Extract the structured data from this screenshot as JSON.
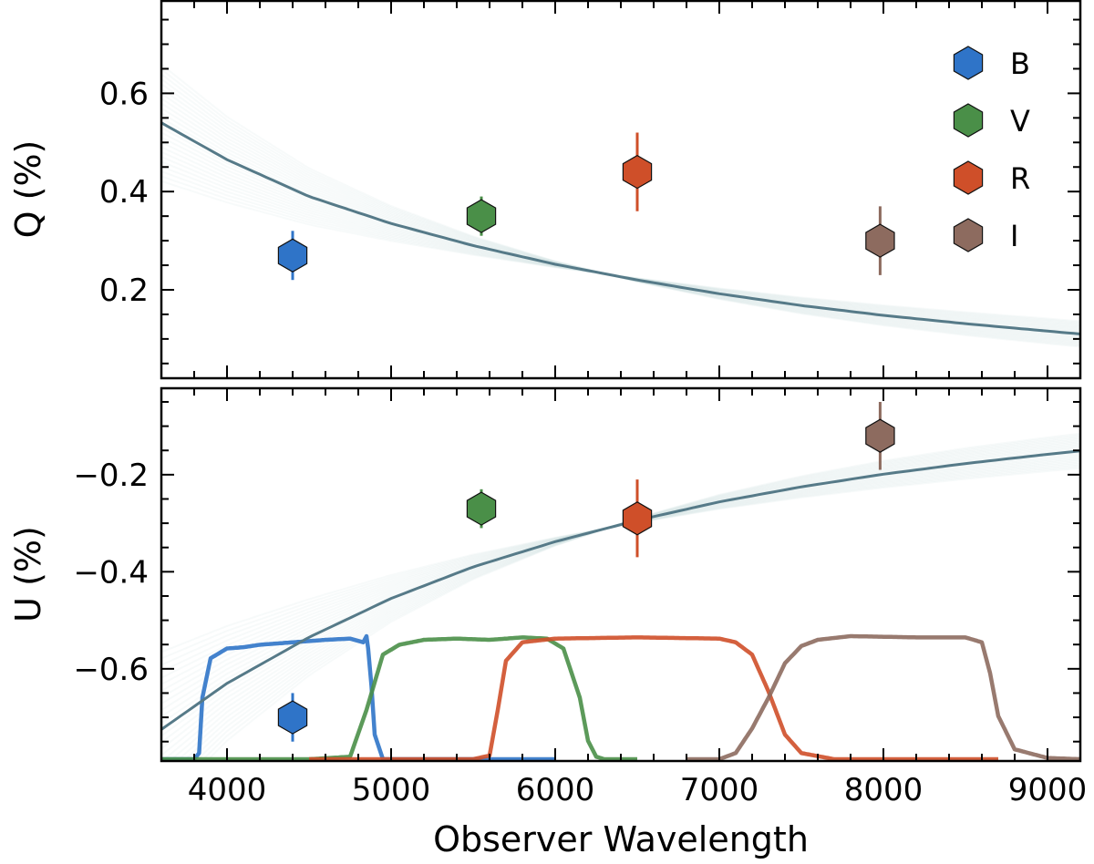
{
  "chart_data": {
    "type": "scatter",
    "xlabel": "Observer Wavelength",
    "xlim": [
      3600,
      9200
    ],
    "x_ticks": [
      4000,
      5000,
      6000,
      7000,
      8000,
      9000
    ],
    "x_tick_labels": [
      "4000",
      "5000",
      "6000",
      "7000",
      "8000",
      "9000"
    ],
    "legend": {
      "position": "top-right",
      "entries": [
        "B",
        "V",
        "R",
        "I"
      ]
    },
    "colors": {
      "B": "#2f74c8",
      "V": "#4a8f48",
      "R": "#cf4f29",
      "I": "#8d6b5f",
      "model": "#567a88",
      "model_samples": "#bcd3d8"
    },
    "panels": [
      {
        "name": "Q",
        "ylabel": "Q (%)",
        "ylim": [
          0.02,
          0.79
        ],
        "y_ticks": [
          0.2,
          0.4,
          0.6
        ],
        "y_tick_labels": [
          "0.2",
          "0.4",
          "0.6"
        ],
        "series": [
          {
            "name": "B",
            "x": 4400,
            "y": 0.27,
            "yerr": 0.05
          },
          {
            "name": "V",
            "x": 5550,
            "y": 0.35,
            "yerr": 0.04
          },
          {
            "name": "R",
            "x": 6500,
            "y": 0.44,
            "yerr": 0.08
          },
          {
            "name": "I",
            "x": 7980,
            "y": 0.3,
            "yerr": 0.07
          }
        ],
        "model_curve": {
          "x": [
            3600,
            4000,
            4500,
            5000,
            5500,
            6000,
            6500,
            7000,
            7500,
            8000,
            8500,
            9000,
            9200
          ],
          "y": [
            0.54,
            0.465,
            0.39,
            0.335,
            0.29,
            0.252,
            0.22,
            0.192,
            0.168,
            0.148,
            0.131,
            0.116,
            0.11
          ]
        }
      },
      {
        "name": "U",
        "ylabel": "U (%)",
        "ylim": [
          -0.79,
          -0.02
        ],
        "y_ticks": [
          -0.6,
          -0.4,
          -0.2
        ],
        "y_tick_labels": [
          "−0.6",
          "−0.4",
          "−0.2"
        ],
        "series": [
          {
            "name": "B",
            "x": 4400,
            "y": -0.7,
            "yerr": 0.05
          },
          {
            "name": "V",
            "x": 5550,
            "y": -0.27,
            "yerr": 0.04
          },
          {
            "name": "R",
            "x": 6500,
            "y": -0.29,
            "yerr": 0.08
          },
          {
            "name": "I",
            "x": 7980,
            "y": -0.12,
            "yerr": 0.07
          }
        ],
        "model_curve": {
          "x": [
            3600,
            4000,
            4500,
            5000,
            5500,
            6000,
            6500,
            7000,
            7500,
            8000,
            8500,
            9000,
            9200
          ],
          "y": [
            -0.725,
            -0.63,
            -0.535,
            -0.455,
            -0.39,
            -0.338,
            -0.294,
            -0.256,
            -0.225,
            -0.199,
            -0.177,
            -0.158,
            -0.151
          ]
        }
      }
    ],
    "filter_curves": [
      {
        "name": "B",
        "x": [
          3600,
          3800,
          3830,
          3850,
          3900,
          4000,
          4100,
          4200,
          4400,
          4600,
          4750,
          4830,
          4850,
          4860,
          4880,
          4900,
          4950,
          5100,
          5500,
          6000
        ],
        "y": [
          0,
          0,
          0.05,
          0.5,
          0.82,
          0.9,
          0.91,
          0.93,
          0.95,
          0.97,
          0.98,
          0.95,
          1.0,
          0.9,
          0.6,
          0.2,
          0,
          0,
          0,
          0
        ]
      },
      {
        "name": "V",
        "x": [
          3600,
          4500,
          4750,
          4850,
          4950,
          5050,
          5200,
          5400,
          5600,
          5800,
          5950,
          6050,
          6150,
          6200,
          6250,
          6300,
          6500
        ],
        "y": [
          0,
          0,
          0.02,
          0.4,
          0.85,
          0.93,
          0.97,
          0.98,
          0.97,
          0.99,
          0.98,
          0.9,
          0.5,
          0.15,
          0.02,
          0,
          0
        ]
      },
      {
        "name": "R",
        "x": [
          4500,
          5500,
          5600,
          5650,
          5700,
          5800,
          6000,
          6500,
          7000,
          7100,
          7200,
          7300,
          7400,
          7500,
          7700,
          8700
        ],
        "y": [
          0,
          0,
          0.03,
          0.4,
          0.8,
          0.95,
          0.98,
          0.99,
          0.98,
          0.95,
          0.85,
          0.55,
          0.2,
          0.05,
          0,
          0
        ]
      },
      {
        "name": "I",
        "x": [
          6800,
          7000,
          7100,
          7200,
          7300,
          7400,
          7500,
          7600,
          7800,
          8200,
          8500,
          8600,
          8650,
          8700,
          8800,
          9000,
          9200
        ],
        "y": [
          0,
          0,
          0.05,
          0.25,
          0.5,
          0.78,
          0.92,
          0.97,
          1.0,
          0.99,
          0.99,
          0.95,
          0.7,
          0.35,
          0.08,
          0.01,
          0
        ]
      }
    ]
  }
}
